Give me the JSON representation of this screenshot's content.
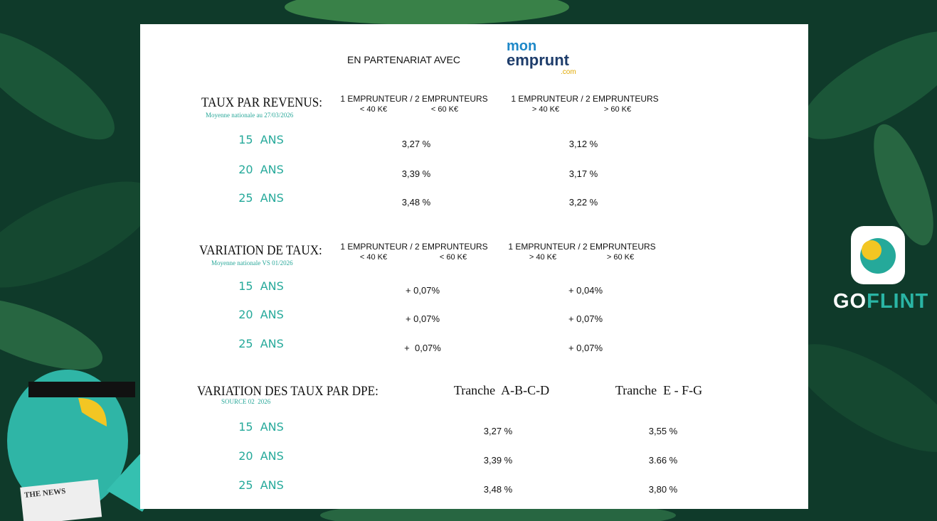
{
  "partner": {
    "intro": "EN PARTENARIAT AVEC",
    "logo_top": "mon",
    "logo_main": "emprunt",
    "logo_suffix": ".com"
  },
  "sections": [
    {
      "title": "TAUX PAR REVENUS:",
      "subtitle": "Moyenne nationale au 27/03/2026",
      "columns": [
        {
          "header": "1 EMPRUNTEUR / 2 EMPRUNTEURS",
          "sub": [
            "< 40 K€",
            "< 60 K€"
          ]
        },
        {
          "header": "1 EMPRUNTEUR / 2 EMPRUNTEURS",
          "sub": [
            "> 40 K€",
            "> 60 K€"
          ]
        }
      ],
      "rows": [
        {
          "label": "15  ANS",
          "values": [
            "3,27 %",
            "3,12 %"
          ]
        },
        {
          "label": "20  ANS",
          "values": [
            "3,39 %",
            "3,17 %"
          ]
        },
        {
          "label": "25  ANS",
          "values": [
            "3,48 %",
            "3,22 %"
          ]
        }
      ]
    },
    {
      "title": "VARIATION DE TAUX:",
      "subtitle": "Moyenne nationale VS 01/2026",
      "columns": [
        {
          "header": "1 EMPRUNTEUR / 2 EMPRUNTEURS",
          "sub": [
            "< 40 K€",
            "< 60 K€"
          ]
        },
        {
          "header": "1 EMPRUNTEUR / 2 EMPRUNTEURS",
          "sub": [
            "> 40 K€",
            "> 60 K€"
          ]
        }
      ],
      "rows": [
        {
          "label": "15  ANS",
          "values": [
            "+ 0,07%",
            "+ 0,04%"
          ]
        },
        {
          "label": "20  ANS",
          "values": [
            "+ 0,07%",
            "+ 0,07%"
          ]
        },
        {
          "label": "25  ANS",
          "values": [
            "+  0,07%",
            "+ 0,07%"
          ]
        }
      ]
    },
    {
      "title": "VARIATION DES TAUX PAR DPE:",
      "subtitle": "SOURCE 02  2026",
      "columns": [
        {
          "header": "Tranche  A-B-C-D"
        },
        {
          "header": "Tranche  E - F-G"
        }
      ],
      "rows": [
        {
          "label": "15  ANS",
          "values": [
            "3,27 %",
            "3,55 %"
          ]
        },
        {
          "label": "20  ANS",
          "values": [
            "3,39 %",
            "3.66 %"
          ]
        },
        {
          "label": "25  ANS",
          "values": [
            "3,48 %",
            "3,80 %"
          ]
        }
      ]
    }
  ],
  "brand": {
    "part1": "GO",
    "part2": "FLINT"
  },
  "newspaper": "THE NEWS"
}
